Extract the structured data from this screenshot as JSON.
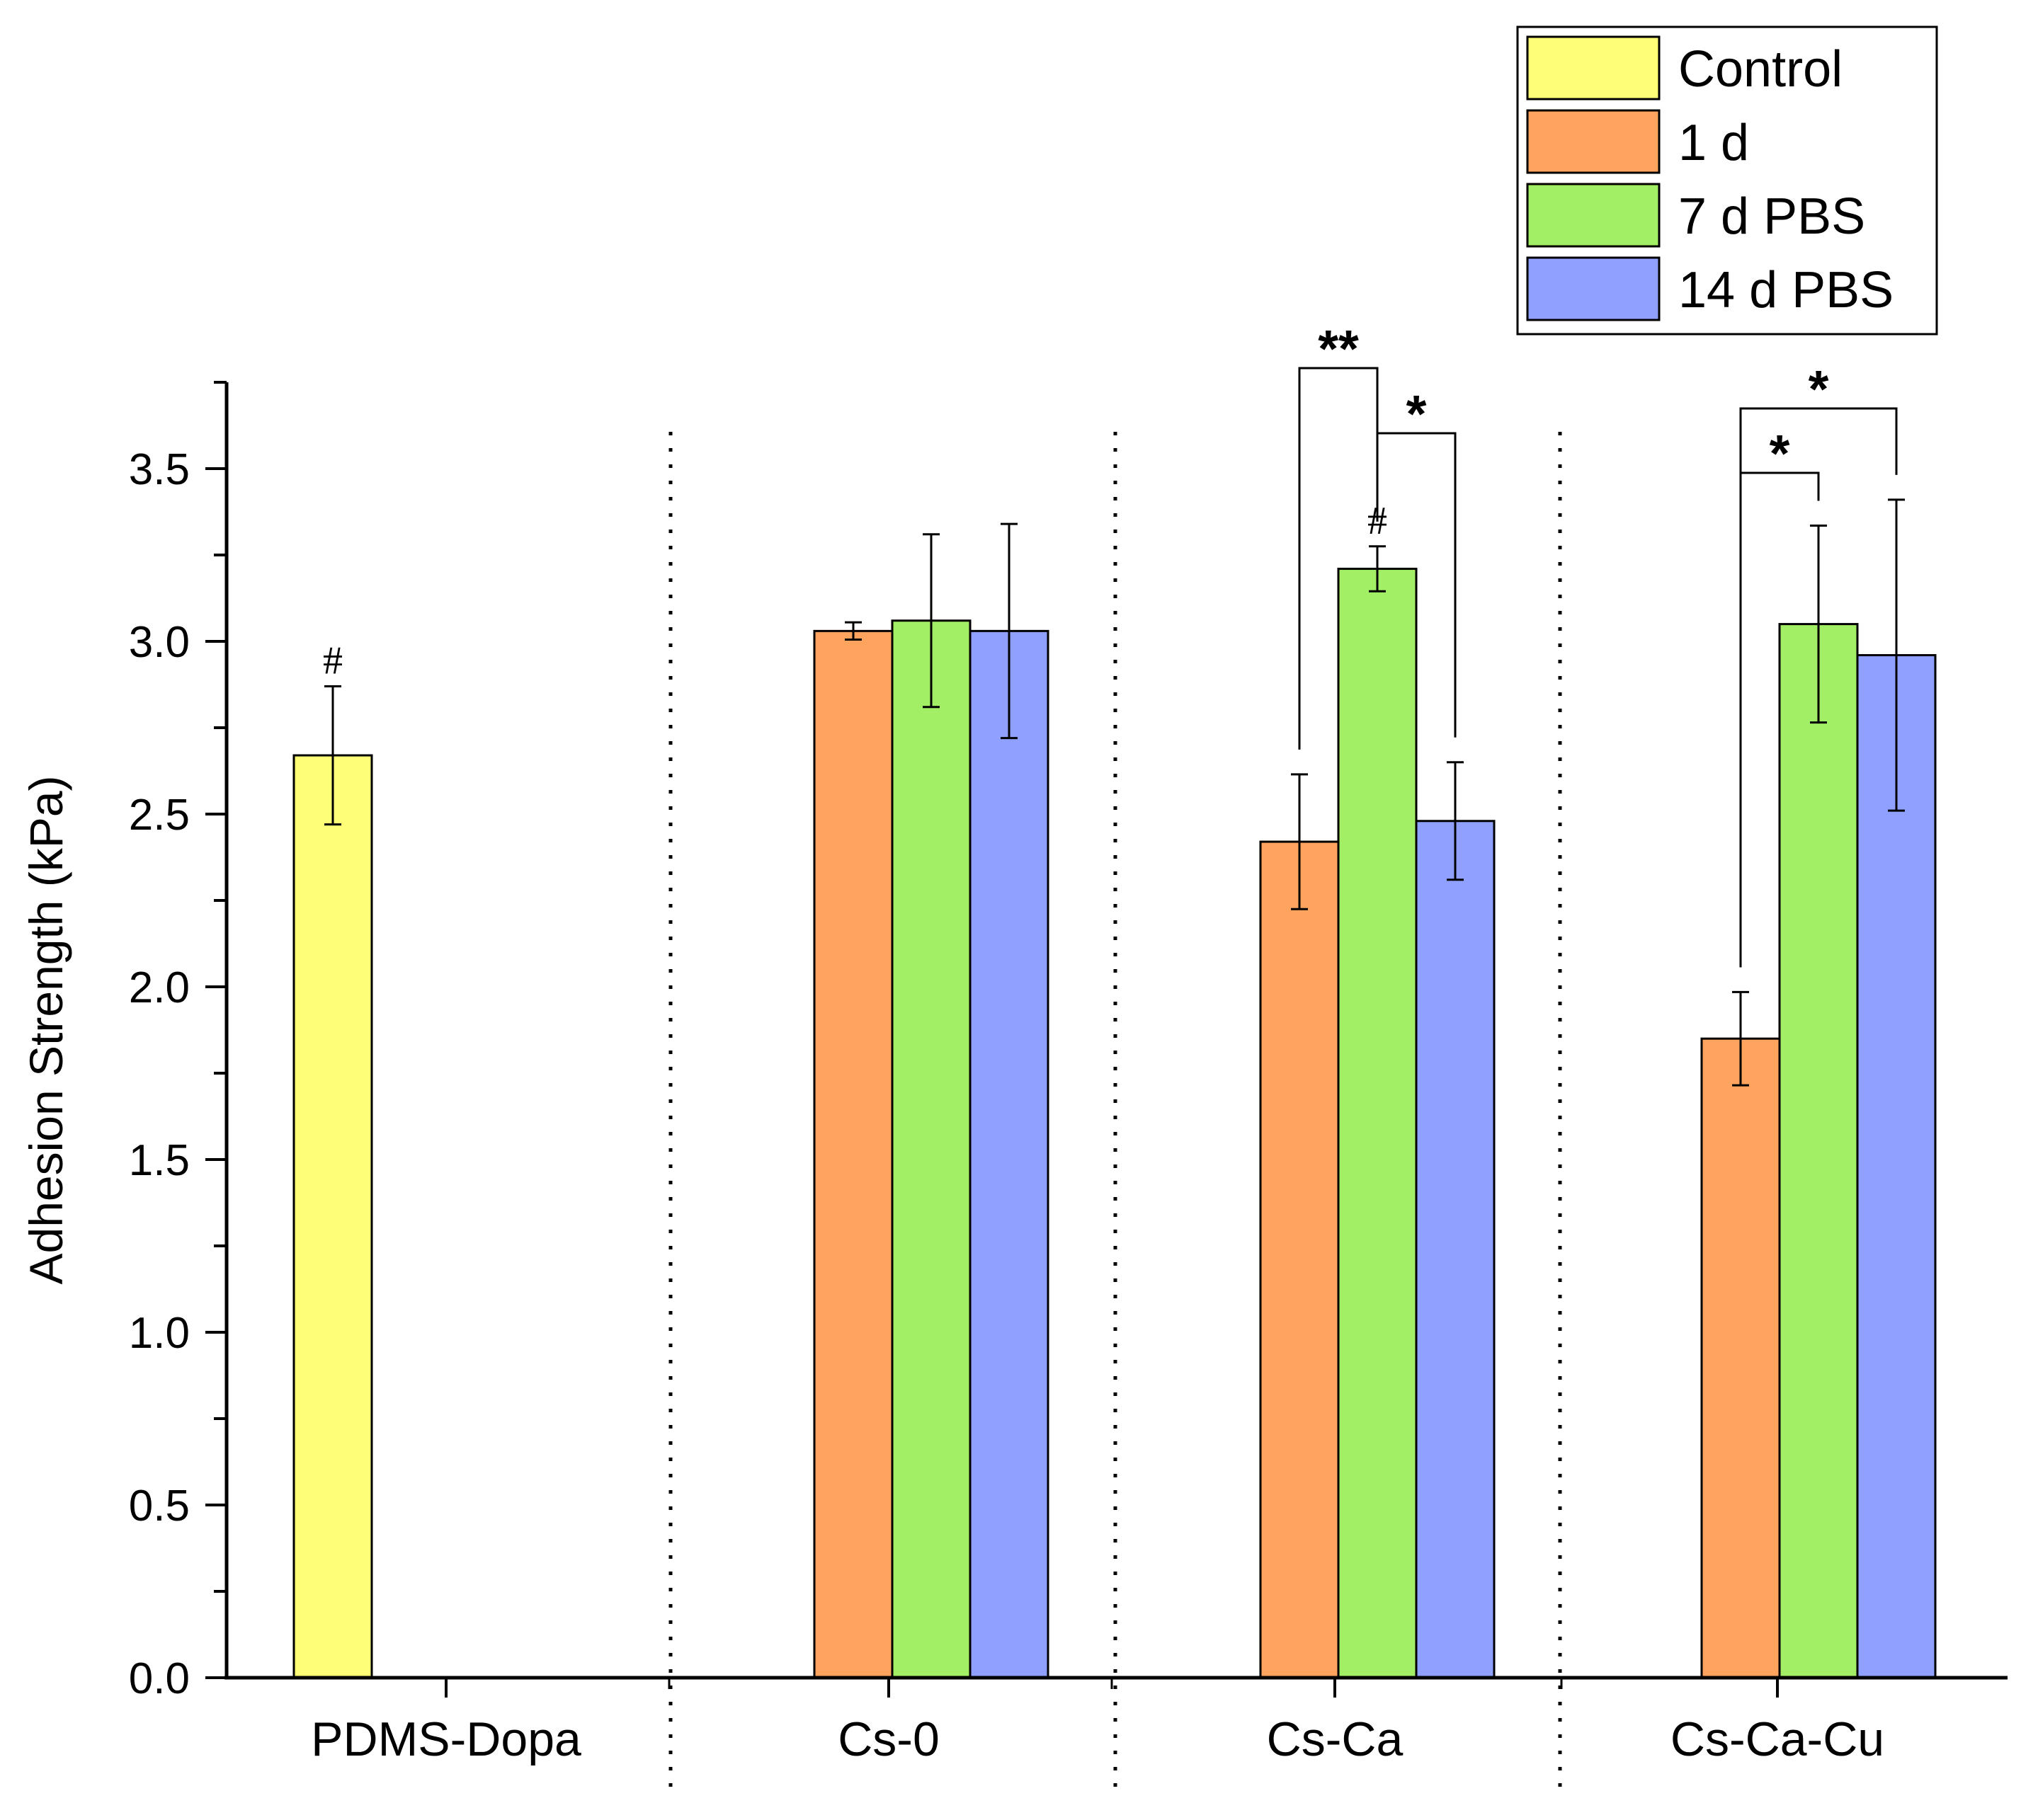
{
  "chart_data": {
    "type": "bar",
    "title": "",
    "xlabel": "",
    "ylabel": "Adhesion Strength (kPa)",
    "ylim": [
      0,
      3.75
    ],
    "yticks": [
      "0.0",
      "0.5",
      "1.0",
      "1.5",
      "2.0",
      "2.5",
      "3.0",
      "3.5"
    ],
    "grid": false,
    "legend_position": "top-right",
    "categories": [
      "PDMS-Dopa",
      "Cs-0",
      "Cs-Ca",
      "Cs-Ca-Cu"
    ],
    "series": [
      {
        "name": "Control",
        "color": "#FFFF77",
        "values": [
          2.67,
          null,
          null,
          null
        ],
        "errors": [
          0.2,
          null,
          null,
          null
        ]
      },
      {
        "name": "1 d",
        "color": "#FFA45F",
        "values": [
          null,
          3.03,
          2.42,
          1.85
        ],
        "errors": [
          null,
          0.025,
          0.195,
          0.135
        ]
      },
      {
        "name": "7 d PBS",
        "color": "#A2EE64",
        "values": [
          null,
          3.06,
          3.21,
          3.05
        ],
        "errors": [
          null,
          0.25,
          0.065,
          0.285
        ]
      },
      {
        "name": "14 d PBS",
        "color": "#8FA0FF",
        "values": [
          null,
          3.03,
          2.48,
          2.96
        ],
        "errors": [
          null,
          0.31,
          0.17,
          0.45
        ]
      }
    ],
    "annotations": [
      {
        "type": "hash",
        "category": 0,
        "series": 0,
        "text": "#"
      },
      {
        "type": "hash",
        "category": 2,
        "series": 2,
        "text": "#"
      },
      {
        "type": "bracket",
        "category": 2,
        "from": 1,
        "to": 2,
        "text": "**"
      },
      {
        "type": "bracket",
        "category": 2,
        "from": 2,
        "to": 3,
        "text": "*"
      },
      {
        "type": "bracket",
        "category": 3,
        "from": 1,
        "to": 2,
        "text": "*"
      },
      {
        "type": "bracket",
        "category": 3,
        "from": 1,
        "to": 3,
        "text": "*"
      }
    ]
  }
}
